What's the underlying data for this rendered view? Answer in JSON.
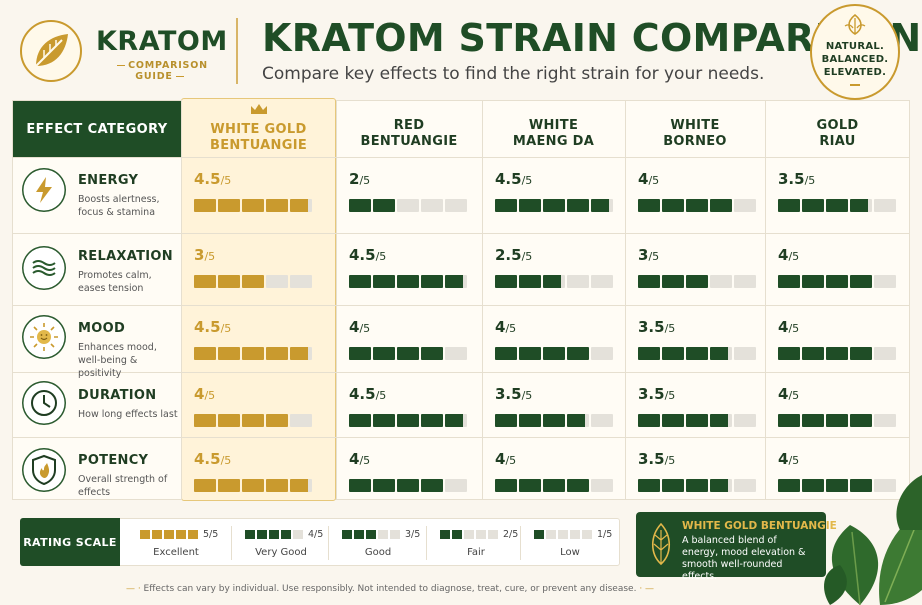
{
  "brand": {
    "logo_title": "KRATOM",
    "logo_subtitle": "COMPARISON GUIDE"
  },
  "header": {
    "title": "KRATOM STRAIN COMPARISON",
    "subtitle": "Compare key effects to find the right strain for your needs."
  },
  "badge": {
    "line1": "NATURAL.",
    "line2": "BALANCED.",
    "line3": "ELEVATED."
  },
  "table": {
    "category_header": "EFFECT CATEGORY",
    "columns": [
      {
        "line1": "WHITE GOLD",
        "line2": "BENTUANGIE",
        "featured": true
      },
      {
        "line1": "RED",
        "line2": "BENTUANGIE",
        "featured": false
      },
      {
        "line1": "WHITE",
        "line2": "MAENG DA",
        "featured": false
      },
      {
        "line1": "WHITE",
        "line2": "BORNEO",
        "featured": false
      },
      {
        "line1": "GOLD",
        "line2": "RIAU",
        "featured": false
      }
    ],
    "rows": [
      {
        "name": "ENERGY",
        "desc": "Boosts alertness, focus & stamina",
        "icon": "lightning-icon",
        "scores": [
          {
            "v": "4.5",
            "d": "/5"
          },
          {
            "v": "2",
            "d": "/5"
          },
          {
            "v": "4.5",
            "d": "/5"
          },
          {
            "v": "4",
            "d": "/5"
          },
          {
            "v": "3.5",
            "d": "/5"
          }
        ]
      },
      {
        "name": "RELAXATION",
        "desc": "Promotes calm, eases tension",
        "icon": "waves-icon",
        "scores": [
          {
            "v": "3",
            "d": "/5"
          },
          {
            "v": "4.5",
            "d": "/5"
          },
          {
            "v": "2.5",
            "d": "/5"
          },
          {
            "v": "3",
            "d": "/5"
          },
          {
            "v": "4",
            "d": "/5"
          }
        ]
      },
      {
        "name": "MOOD",
        "desc": "Enhances mood, well-being & positivity",
        "icon": "sun-smile-icon",
        "scores": [
          {
            "v": "4.5",
            "d": "/5"
          },
          {
            "v": "4",
            "d": "/5"
          },
          {
            "v": "4",
            "d": "/5"
          },
          {
            "v": "3.5",
            "d": "/5"
          },
          {
            "v": "4",
            "d": "/5"
          }
        ]
      },
      {
        "name": "DURATION",
        "desc": "How long effects last",
        "icon": "clock-icon",
        "scores": [
          {
            "v": "4",
            "d": "/5"
          },
          {
            "v": "4.5",
            "d": "/5"
          },
          {
            "v": "3.5",
            "d": "/5"
          },
          {
            "v": "3.5",
            "d": "/5"
          },
          {
            "v": "4",
            "d": "/5"
          }
        ]
      },
      {
        "name": "POTENCY",
        "desc": "Overall strength of effects",
        "icon": "flame-shield-icon",
        "scores": [
          {
            "v": "4.5",
            "d": "/5"
          },
          {
            "v": "4",
            "d": "/5"
          },
          {
            "v": "4",
            "d": "/5"
          },
          {
            "v": "3.5",
            "d": "/5"
          },
          {
            "v": "4",
            "d": "/5"
          }
        ]
      }
    ]
  },
  "rating_scale": {
    "label": "RATING SCALE",
    "items": [
      {
        "value": "5/5",
        "name": "Excellent",
        "filled": 5
      },
      {
        "value": "4/5",
        "name": "Very Good",
        "filled": 4
      },
      {
        "value": "3/5",
        "name": "Good",
        "filled": 3
      },
      {
        "value": "2/5",
        "name": "Fair",
        "filled": 2
      },
      {
        "value": "1/5",
        "name": "Low",
        "filled": 1
      }
    ]
  },
  "callout": {
    "title": "WHITE GOLD BENTUANGIE",
    "text": "A balanced blend of energy, mood elevation & smooth well-rounded effects."
  },
  "disclaimer": "Effects can vary by individual. Use responsibly. Not intended to diagnose, treat, cure, or prevent any disease.",
  "colors": {
    "primary_green": "#1f4d26",
    "gold": "#c99a2e",
    "background": "#faf6ee"
  }
}
